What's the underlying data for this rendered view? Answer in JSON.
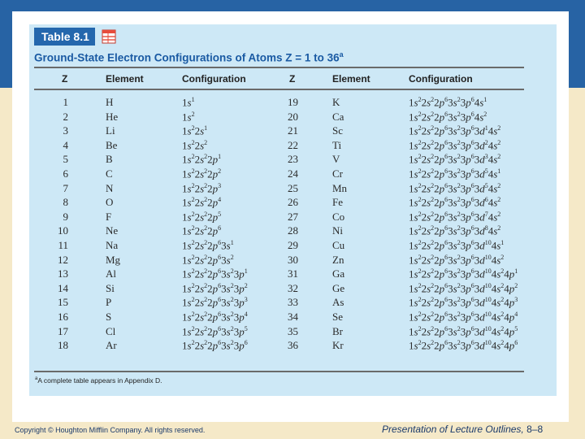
{
  "table_tag": "Table 8.1",
  "caption": {
    "text": "Ground-State Electron Configurations of Atoms Z = 1 to 36",
    "marker": "a"
  },
  "headers": [
    "Z",
    "Element",
    "Configuration",
    "Z",
    "Element",
    "Configuration"
  ],
  "rows": [
    {
      "z1": "1",
      "el1": "H",
      "cfg1": "1s^1",
      "z2": "19",
      "el2": "K",
      "cfg2": "1s^2 2s^2 2p^6 3s^2 3p^6 4s^1"
    },
    {
      "z1": "2",
      "el1": "He",
      "cfg1": "1s^2",
      "z2": "20",
      "el2": "Ca",
      "cfg2": "1s^2 2s^2 2p^6 3s^2 3p^6 4s^2"
    },
    {
      "z1": "3",
      "el1": "Li",
      "cfg1": "1s^2 2s^1",
      "z2": "21",
      "el2": "Sc",
      "cfg2": "1s^2 2s^2 2p^6 3s^2 3p^6 3d^1 4s^2"
    },
    {
      "z1": "4",
      "el1": "Be",
      "cfg1": "1s^2 2s^2",
      "z2": "22",
      "el2": "Ti",
      "cfg2": "1s^2 2s^2 2p^6 3s^2 3p^6 3d^2 4s^2"
    },
    {
      "z1": "5",
      "el1": "B",
      "cfg1": "1s^2 2s^2 2p^1",
      "z2": "23",
      "el2": "V",
      "cfg2": "1s^2 2s^2 2p^6 3s^2 3p^6 3d^3 4s^2"
    },
    {
      "z1": "6",
      "el1": "C",
      "cfg1": "1s^2 2s^2 2p^2",
      "z2": "24",
      "el2": "Cr",
      "cfg2": "1s^2 2s^2 2p^6 3s^2 3p^6 3d^5 4s^1"
    },
    {
      "z1": "7",
      "el1": "N",
      "cfg1": "1s^2 2s^2 2p^3",
      "z2": "25",
      "el2": "Mn",
      "cfg2": "1s^2 2s^2 2p^6 3s^2 3p^6 3d^5 4s^2"
    },
    {
      "z1": "8",
      "el1": "O",
      "cfg1": "1s^2 2s^2 2p^4",
      "z2": "26",
      "el2": "Fe",
      "cfg2": "1s^2 2s^2 2p^6 3s^2 3p^6 3d^6 4s^2"
    },
    {
      "z1": "9",
      "el1": "F",
      "cfg1": "1s^2 2s^2 2p^5",
      "z2": "27",
      "el2": "Co",
      "cfg2": "1s^2 2s^2 2p^6 3s^2 3p^6 3d^7 4s^2"
    },
    {
      "z1": "10",
      "el1": "Ne",
      "cfg1": "1s^2 2s^2 2p^6",
      "z2": "28",
      "el2": "Ni",
      "cfg2": "1s^2 2s^2 2p^6 3s^2 3p^6 3d^8 4s^2"
    },
    {
      "z1": "11",
      "el1": "Na",
      "cfg1": "1s^2 2s^2 2p^6 3s^1",
      "z2": "29",
      "el2": "Cu",
      "cfg2": "1s^2 2s^2 2p^6 3s^2 3p^6 3d^10 4s^1"
    },
    {
      "z1": "12",
      "el1": "Mg",
      "cfg1": "1s^2 2s^2 2p^6 3s^2",
      "z2": "30",
      "el2": "Zn",
      "cfg2": "1s^2 2s^2 2p^6 3s^2 3p^6 3d^10 4s^2"
    },
    {
      "z1": "13",
      "el1": "Al",
      "cfg1": "1s^2 2s^2 2p^6 3s^2 3p^1",
      "z2": "31",
      "el2": "Ga",
      "cfg2": "1s^2 2s^2 2p^6 3s^2 3p^6 3d^10 4s^2 4p^1"
    },
    {
      "z1": "14",
      "el1": "Si",
      "cfg1": "1s^2 2s^2 2p^6 3s^2 3p^2",
      "z2": "32",
      "el2": "Ge",
      "cfg2": "1s^2 2s^2 2p^6 3s^2 3p^6 3d^10 4s^2 4p^2"
    },
    {
      "z1": "15",
      "el1": "P",
      "cfg1": "1s^2 2s^2 2p^6 3s^2 3p^3",
      "z2": "33",
      "el2": "As",
      "cfg2": "1s^2 2s^2 2p^6 3s^2 3p^6 3d^10 4s^2 4p^3"
    },
    {
      "z1": "16",
      "el1": "S",
      "cfg1": "1s^2 2s^2 2p^6 3s^2 3p^4",
      "z2": "34",
      "el2": "Se",
      "cfg2": "1s^2 2s^2 2p^6 3s^2 3p^6 3d^10 4s^2 4p^4"
    },
    {
      "z1": "17",
      "el1": "Cl",
      "cfg1": "1s^2 2s^2 2p^6 3s^2 3p^5",
      "z2": "35",
      "el2": "Br",
      "cfg2": "1s^2 2s^2 2p^6 3s^2 3p^6 3d^10 4s^2 4p^5"
    },
    {
      "z1": "18",
      "el1": "Ar",
      "cfg1": "1s^2 2s^2 2p^6 3s^2 3p^6",
      "z2": "36",
      "el2": "Kr",
      "cfg2": "1s^2 2s^2 2p^6 3s^2 3p^6 3d^10 4s^2 4p^6"
    }
  ],
  "footnote": {
    "marker": "a",
    "text": "A complete table appears in Appendix D."
  },
  "footer": {
    "copyright": "Copyright © Houghton Mifflin Company. All rights reserved.",
    "presentation": "Presentation of Lecture Outlines,",
    "page": "8–8"
  },
  "colors": {
    "header_band": "#2763a4",
    "table_tag": "#2467ad",
    "caption": "#1a5aa3",
    "panel": "#cde8f6"
  }
}
